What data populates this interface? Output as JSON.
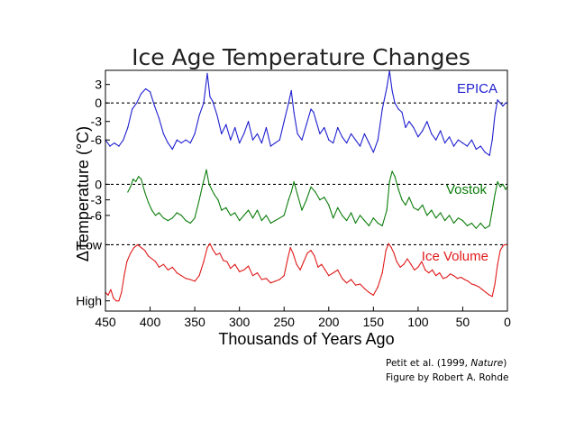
{
  "chart_data": {
    "type": "line",
    "title": "Ice Age Temperature Changes",
    "xlabel": "Thousands of Years Ago",
    "ylabel": "ΔTemperature (°C)",
    "xlim": [
      450,
      0
    ],
    "x_ticks": [
      "450",
      "400",
      "350",
      "300",
      "250",
      "200",
      "150",
      "100",
      "50",
      "0"
    ],
    "x_tick_values": [
      450,
      400,
      350,
      300,
      250,
      200,
      150,
      100,
      50,
      0
    ],
    "grid": false,
    "colors": {
      "epica": "#1f1fcf",
      "vostok": "#0b7d0b",
      "ice": "#e01b1b"
    },
    "panels": [
      {
        "key": "epica",
        "name": "EPICA",
        "ylim": [
          -10.5,
          5
        ],
        "y_ticks": [
          "3",
          "0",
          "-3",
          "-6"
        ],
        "y_tick_values": [
          3,
          0,
          -3,
          -6
        ],
        "baseline": 0,
        "x": [
          450,
          445,
          440,
          435,
          430,
          425,
          420,
          415,
          410,
          405,
          400,
          395,
          390,
          385,
          380,
          375,
          370,
          365,
          360,
          355,
          350,
          345,
          340,
          336,
          333,
          330,
          325,
          320,
          315,
          310,
          305,
          300,
          295,
          290,
          285,
          280,
          275,
          270,
          265,
          260,
          255,
          250,
          245,
          242,
          239,
          235,
          230,
          225,
          220,
          217,
          214,
          210,
          205,
          200,
          195,
          190,
          185,
          180,
          175,
          170,
          165,
          160,
          155,
          150,
          145,
          140,
          135,
          132,
          129,
          126,
          122,
          118,
          114,
          110,
          105,
          100,
          95,
          90,
          85,
          80,
          75,
          70,
          65,
          60,
          55,
          50,
          45,
          40,
          35,
          30,
          25,
          20,
          17,
          14,
          11,
          8,
          5,
          2,
          0
        ],
        "y": [
          -6,
          -7,
          -6.5,
          -7,
          -6,
          -4,
          -1,
          0,
          1.5,
          2.3,
          1.8,
          -0.5,
          -2.5,
          -5,
          -6.5,
          -7.5,
          -6,
          -6.5,
          -6,
          -6.5,
          -5,
          -2,
          0,
          4.8,
          1,
          0.3,
          -2,
          -5,
          -3.5,
          -6,
          -4,
          -6.5,
          -5,
          -3,
          -6,
          -5,
          -6.5,
          -4,
          -7,
          -6.5,
          -6,
          -3,
          0,
          2,
          -1.5,
          -5,
          -6,
          -3.5,
          -1,
          -1.5,
          -3,
          -5,
          -4,
          -6,
          -6.5,
          -4,
          -5.5,
          -6.5,
          -5,
          -6,
          -7,
          -5,
          -6.5,
          -8,
          -6,
          -1,
          2.5,
          5.2,
          2,
          0,
          -1,
          -1.5,
          -4,
          -3,
          -4,
          -5.5,
          -4.5,
          -3,
          -5,
          -6,
          -4.5,
          -6.5,
          -5.5,
          -7,
          -6,
          -6.5,
          -7,
          -6,
          -7.5,
          -7,
          -8,
          -8.5,
          -6,
          -2,
          0.5,
          0,
          -0.5,
          0,
          0
        ]
      },
      {
        "key": "vostok",
        "name": "Vostok",
        "ylim": [
          -9.5,
          3.2
        ],
        "y_ticks": [
          "0",
          "-3",
          "-6"
        ],
        "y_tick_values": [
          0,
          -3,
          -6
        ],
        "baseline": 0,
        "x": [
          425,
          422,
          419,
          416,
          413,
          410,
          406,
          402,
          398,
          394,
          390,
          385,
          380,
          375,
          370,
          365,
          360,
          355,
          350,
          345,
          341,
          337,
          334,
          331,
          328,
          324,
          320,
          315,
          310,
          305,
          300,
          295,
          290,
          285,
          280,
          275,
          270,
          265,
          260,
          255,
          250,
          245,
          242,
          239,
          235,
          230,
          225,
          220,
          215,
          210,
          205,
          200,
          195,
          190,
          185,
          180,
          175,
          170,
          165,
          160,
          155,
          150,
          145,
          140,
          135,
          132,
          129,
          126,
          122,
          118,
          114,
          110,
          105,
          100,
          95,
          90,
          85,
          80,
          75,
          70,
          65,
          60,
          55,
          50,
          45,
          40,
          35,
          30,
          25,
          20,
          17,
          14,
          11,
          8,
          5,
          2,
          0
        ],
        "y": [
          -1.5,
          -0.5,
          1,
          0.5,
          1.5,
          1,
          -1.5,
          -3.5,
          -5,
          -6,
          -5.5,
          -6.5,
          -7,
          -6.5,
          -5.5,
          -6,
          -7,
          -7.5,
          -6.5,
          -3,
          0,
          2.8,
          0,
          -1,
          -2,
          -3,
          -5,
          -4.5,
          -6,
          -5.5,
          -7,
          -6,
          -5,
          -6.5,
          -5,
          -7,
          -6,
          -7.5,
          -7,
          -6.5,
          -6,
          -3,
          -1.5,
          0.5,
          -2,
          -5,
          -3,
          -0.5,
          -1.5,
          -3,
          -2.5,
          -4,
          -6.5,
          -4.5,
          -6,
          -7,
          -5.5,
          -7.5,
          -6,
          -7,
          -8,
          -6.5,
          -7.5,
          -8,
          -5,
          0.5,
          2.5,
          1.5,
          -1,
          -3,
          -4,
          -2.5,
          -4.5,
          -5,
          -4,
          -6,
          -5,
          -6.5,
          -5.5,
          -7,
          -6,
          -7.5,
          -6.5,
          -7,
          -8,
          -7.5,
          -8.5,
          -7.5,
          -8.5,
          -8,
          -5,
          -2,
          0.5,
          -0.5,
          0,
          -1,
          -0.5
        ]
      },
      {
        "key": "ice",
        "name": "Ice Volume",
        "ylim": [
          -1.15,
          0.2
        ],
        "y_ticks": [
          "Low",
          "High"
        ],
        "y_tick_values": [
          0,
          -1
        ],
        "baseline": 0,
        "x": [
          450,
          447,
          444,
          441,
          438,
          435,
          432,
          429,
          426,
          422,
          418,
          414,
          410,
          406,
          402,
          398,
          394,
          390,
          385,
          380,
          375,
          370,
          365,
          360,
          355,
          350,
          345,
          340,
          336,
          333,
          330,
          326,
          322,
          318,
          314,
          310,
          305,
          300,
          295,
          290,
          285,
          280,
          275,
          270,
          265,
          260,
          255,
          250,
          246,
          243,
          240,
          236,
          232,
          228,
          224,
          220,
          216,
          212,
          208,
          204,
          200,
          195,
          190,
          185,
          180,
          175,
          170,
          165,
          160,
          155,
          150,
          145,
          140,
          136,
          133,
          130,
          127,
          124,
          120,
          116,
          112,
          108,
          104,
          100,
          96,
          92,
          88,
          84,
          80,
          76,
          72,
          68,
          64,
          60,
          56,
          52,
          48,
          44,
          40,
          36,
          32,
          28,
          24,
          20,
          17,
          14,
          11,
          8,
          5,
          3,
          0
        ],
        "y": [
          -0.85,
          -0.9,
          -0.8,
          -0.95,
          -1.0,
          -1.0,
          -0.85,
          -0.55,
          -0.3,
          -0.15,
          -0.05,
          0.0,
          -0.05,
          -0.1,
          -0.2,
          -0.25,
          -0.3,
          -0.4,
          -0.35,
          -0.45,
          -0.4,
          -0.5,
          -0.55,
          -0.6,
          -0.62,
          -0.65,
          -0.55,
          -0.3,
          -0.05,
          0.02,
          -0.08,
          -0.18,
          -0.15,
          -0.28,
          -0.3,
          -0.42,
          -0.35,
          -0.48,
          -0.45,
          -0.38,
          -0.55,
          -0.5,
          -0.62,
          -0.6,
          -0.68,
          -0.65,
          -0.62,
          -0.55,
          -0.25,
          -0.05,
          -0.15,
          -0.35,
          -0.45,
          -0.3,
          -0.15,
          -0.1,
          -0.2,
          -0.4,
          -0.35,
          -0.45,
          -0.55,
          -0.5,
          -0.45,
          -0.6,
          -0.68,
          -0.62,
          -0.72,
          -0.7,
          -0.78,
          -0.85,
          -0.9,
          -0.75,
          -0.5,
          -0.1,
          0.02,
          -0.05,
          -0.15,
          -0.3,
          -0.4,
          -0.35,
          -0.25,
          -0.35,
          -0.45,
          -0.4,
          -0.3,
          -0.45,
          -0.5,
          -0.45,
          -0.55,
          -0.5,
          -0.6,
          -0.58,
          -0.52,
          -0.55,
          -0.6,
          -0.58,
          -0.62,
          -0.65,
          -0.7,
          -0.72,
          -0.75,
          -0.8,
          -0.85,
          -0.9,
          -0.92,
          -0.7,
          -0.35,
          -0.1,
          -0.02,
          0.0,
          0.0
        ]
      }
    ]
  },
  "credit": {
    "line1_prefix": "Petit et al. (1999, ",
    "line1_journal": "Nature",
    "line1_suffix": ")",
    "line2": "Figure by Robert A. Rohde"
  }
}
